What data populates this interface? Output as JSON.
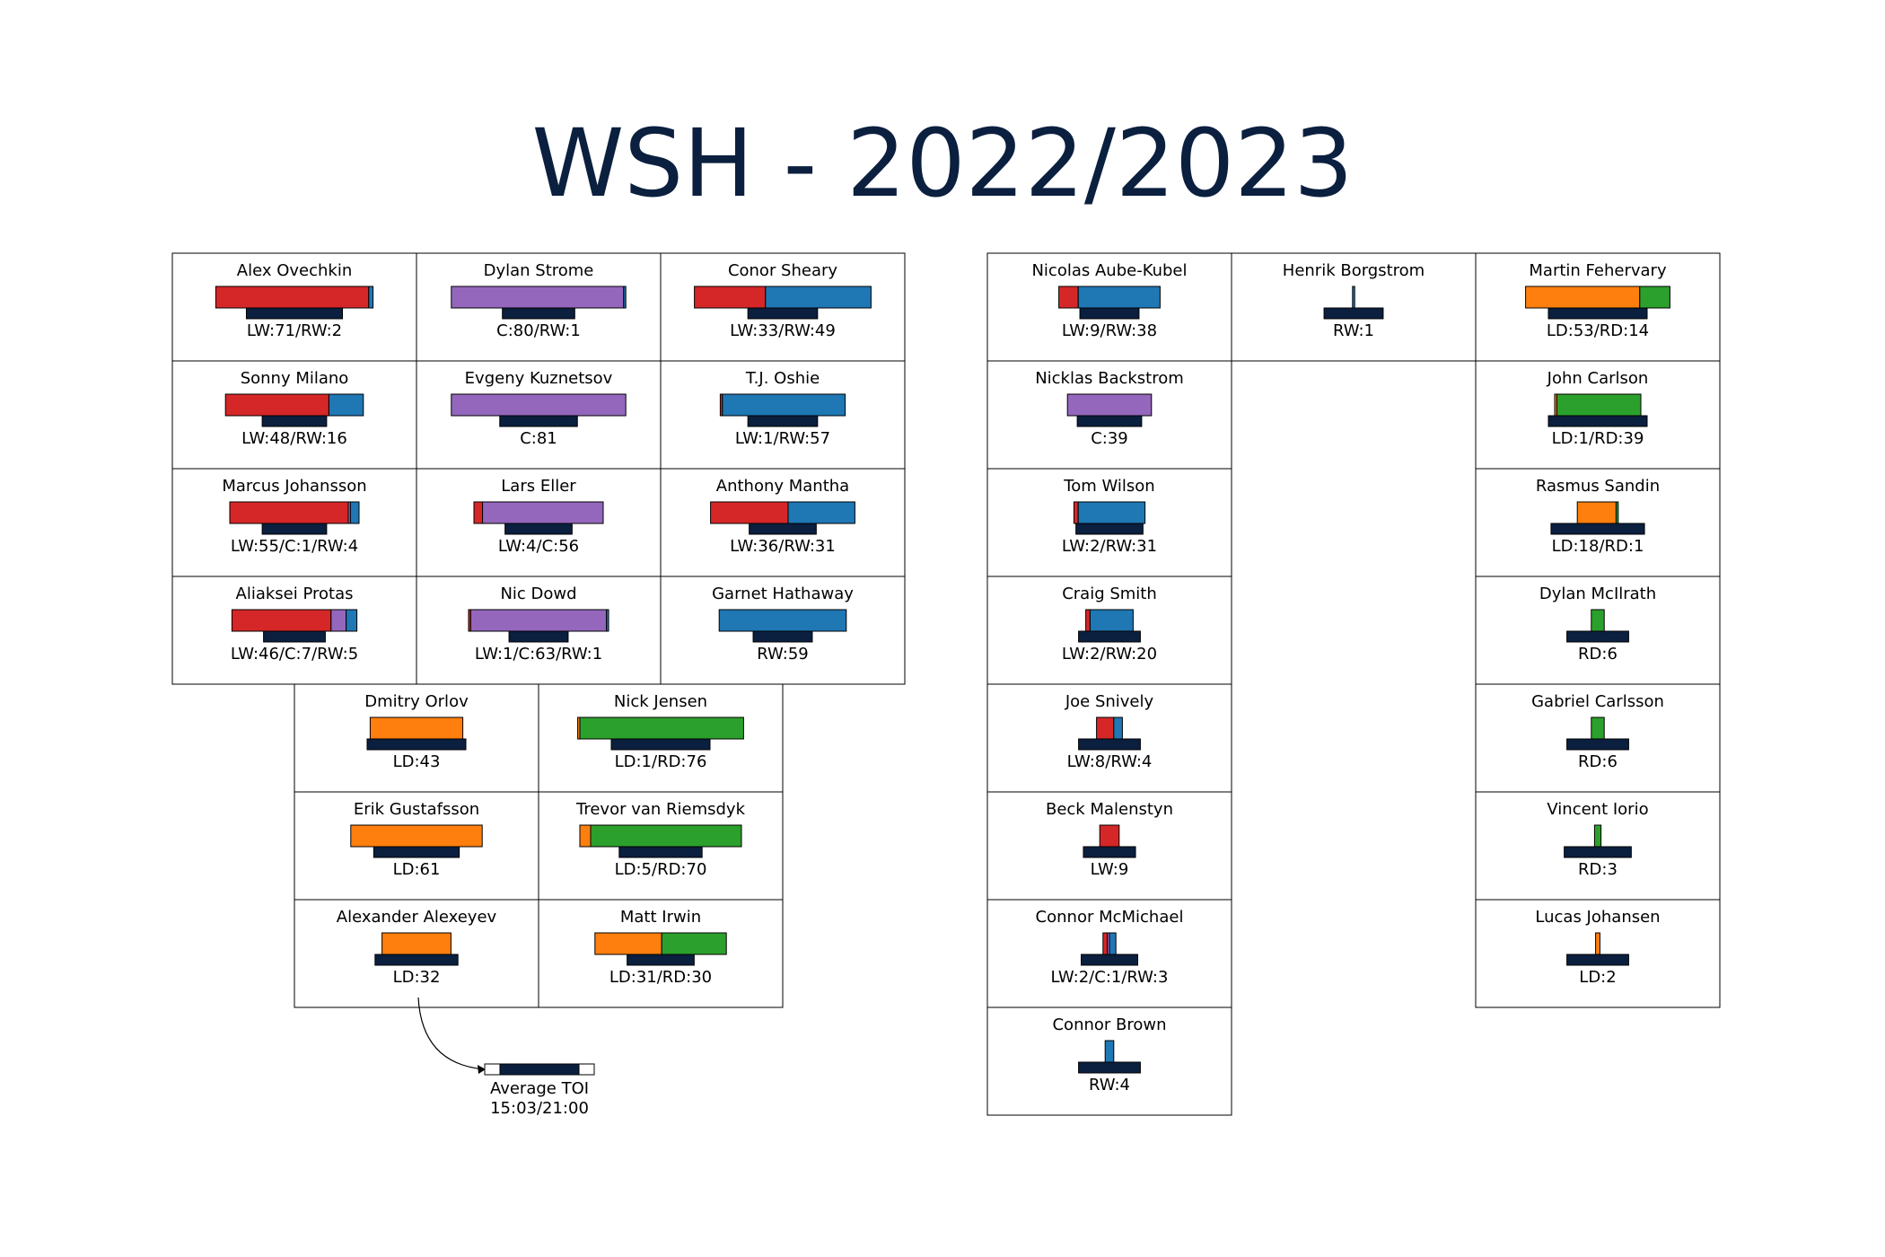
{
  "chart_data": {
    "type": "bar",
    "title": "WSH - 2022/2023",
    "colors": {
      "LW": "#d62728",
      "C": "#9467bd",
      "RW": "#1f77b4",
      "LD": "#ff7f0e",
      "RD": "#2ca02c",
      "toi": "#0b1f3f"
    },
    "toi_legend": {
      "label": "Average TOI",
      "range": "15:03/21:00",
      "min_seconds": 903,
      "max_seconds": 1260
    },
    "groups": [
      {
        "name": "forwards",
        "rows": [
          [
            {
              "player": "Alex Ovechkin",
              "label": "LW:71/RW:2",
              "positions": [
                {
                  "pos": "LW",
                  "games": 71
                },
                {
                  "pos": "RW",
                  "games": 2
                }
              ],
              "toi_seconds": 1245
            },
            {
              "player": "Dylan Strome",
              "label": "C:80/RW:1",
              "positions": [
                {
                  "pos": "C",
                  "games": 80
                },
                {
                  "pos": "RW",
                  "games": 1
                }
              ],
              "toi_seconds": 1110
            },
            {
              "player": "Conor Sheary",
              "label": "LW:33/RW:49",
              "positions": [
                {
                  "pos": "LW",
                  "games": 33
                },
                {
                  "pos": "RW",
                  "games": 49
                }
              ],
              "toi_seconds": 1095
            }
          ],
          [
            {
              "player": "Sonny Milano",
              "label": "LW:48/RW:16",
              "positions": [
                {
                  "pos": "LW",
                  "games": 48
                },
                {
                  "pos": "RW",
                  "games": 16
                }
              ],
              "toi_seconds": 1065
            },
            {
              "player": "Evgeny Kuznetsov",
              "label": "C:81",
              "positions": [
                {
                  "pos": "C",
                  "games": 81
                }
              ],
              "toi_seconds": 1140
            },
            {
              "player": "T.J. Oshie",
              "label": "LW:1/RW:57",
              "positions": [
                {
                  "pos": "LW",
                  "games": 1
                },
                {
                  "pos": "RW",
                  "games": 57
                }
              ],
              "toi_seconds": 1095
            }
          ],
          [
            {
              "player": "Marcus Johansson",
              "label": "LW:55/C:1/RW:4",
              "positions": [
                {
                  "pos": "LW",
                  "games": 55
                },
                {
                  "pos": "C",
                  "games": 1
                },
                {
                  "pos": "RW",
                  "games": 4
                }
              ],
              "toi_seconds": 1065
            },
            {
              "player": "Lars Eller",
              "label": "LW:4/C:56",
              "positions": [
                {
                  "pos": "LW",
                  "games": 4
                },
                {
                  "pos": "C",
                  "games": 56
                }
              ],
              "toi_seconds": 1080
            },
            {
              "player": "Anthony Mantha",
              "label": "LW:36/RW:31",
              "positions": [
                {
                  "pos": "LW",
                  "games": 36
                },
                {
                  "pos": "RW",
                  "games": 31
                }
              ],
              "toi_seconds": 1080
            }
          ],
          [
            {
              "player": "Aliaksei Protas",
              "label": "LW:46/C:7/RW:5",
              "positions": [
                {
                  "pos": "LW",
                  "games": 46
                },
                {
                  "pos": "C",
                  "games": 7
                },
                {
                  "pos": "RW",
                  "games": 5
                }
              ],
              "toi_seconds": 1050
            },
            {
              "player": "Nic Dowd",
              "label": "LW:1/C:63/RW:1",
              "positions": [
                {
                  "pos": "LW",
                  "games": 1
                },
                {
                  "pos": "C",
                  "games": 63
                },
                {
                  "pos": "RW",
                  "games": 1
                }
              ],
              "toi_seconds": 1035
            },
            {
              "player": "Garnet Hathaway",
              "label": "RW:59",
              "positions": [
                {
                  "pos": "RW",
                  "games": 59
                }
              ],
              "toi_seconds": 1035
            }
          ]
        ]
      },
      {
        "name": "defense",
        "rows": [
          [
            {
              "player": "Dmitry Orlov",
              "label": "LD:43",
              "positions": [
                {
                  "pos": "LD",
                  "games": 43
                }
              ],
              "toi_seconds": 1260
            },
            {
              "player": "Nick Jensen",
              "label": "LD:1/RD:76",
              "positions": [
                {
                  "pos": "LD",
                  "games": 1
                },
                {
                  "pos": "RD",
                  "games": 76
                }
              ],
              "toi_seconds": 1260
            }
          ],
          [
            {
              "player": "Erik Gustafsson",
              "label": "LD:61",
              "positions": [
                {
                  "pos": "LD",
                  "games": 61
                }
              ],
              "toi_seconds": 1185
            },
            {
              "player": "Trevor van Riemsdyk",
              "label": "LD:5/RD:70",
              "positions": [
                {
                  "pos": "LD",
                  "games": 5
                },
                {
                  "pos": "RD",
                  "games": 70
                }
              ],
              "toi_seconds": 1170
            }
          ],
          [
            {
              "player": "Alexander Alexeyev",
              "label": "LD:32",
              "positions": [
                {
                  "pos": "LD",
                  "games": 32
                }
              ],
              "toi_seconds": 1170
            },
            {
              "player": "Matt Irwin",
              "label": "LD:31/RD:30",
              "positions": [
                {
                  "pos": "LD",
                  "games": 31
                },
                {
                  "pos": "RD",
                  "games": 30
                }
              ],
              "toi_seconds": 1080
            }
          ]
        ]
      },
      {
        "name": "depth",
        "rows": [
          [
            {
              "player": "Nicolas Aube-Kubel",
              "label": "LW:9/RW:38",
              "positions": [
                {
                  "pos": "LW",
                  "games": 9
                },
                {
                  "pos": "RW",
                  "games": 38
                }
              ],
              "toi_seconds": 1035
            },
            {
              "player": "Henrik Borgstrom",
              "label": "RW:1",
              "positions": [
                {
                  "pos": "RW",
                  "games": 1
                }
              ],
              "toi_seconds": 1035
            },
            {
              "player": "Martin Fehervary",
              "label": "LD:53/RD:14",
              "positions": [
                {
                  "pos": "LD",
                  "games": 53
                },
                {
                  "pos": "RD",
                  "games": 14
                }
              ],
              "toi_seconds": 1260
            }
          ],
          [
            {
              "player": "Nicklas Backstrom",
              "label": "C:39",
              "positions": [
                {
                  "pos": "C",
                  "games": 39
                }
              ],
              "toi_seconds": 1065
            },
            null,
            {
              "player": "John Carlson",
              "label": "LD:1/RD:39",
              "positions": [
                {
                  "pos": "LD",
                  "games": 1
                },
                {
                  "pos": "RD",
                  "games": 39
                }
              ],
              "toi_seconds": 1260
            }
          ],
          [
            {
              "player": "Tom Wilson",
              "label": "LW:2/RW:31",
              "positions": [
                {
                  "pos": "LW",
                  "games": 2
                },
                {
                  "pos": "RW",
                  "games": 31
                }
              ],
              "toi_seconds": 1080
            },
            null,
            {
              "player": "Rasmus Sandin",
              "label": "LD:18/RD:1",
              "positions": [
                {
                  "pos": "LD",
                  "games": 18
                },
                {
                  "pos": "RD",
                  "games": 1
                }
              ],
              "toi_seconds": 1230
            }
          ],
          [
            {
              "player": "Craig Smith",
              "label": "LW:2/RW:20",
              "positions": [
                {
                  "pos": "LW",
                  "games": 2
                },
                {
                  "pos": "RW",
                  "games": 20
                }
              ],
              "toi_seconds": 1050
            },
            null,
            {
              "player": "Dylan McIlrath",
              "label": "RD:6",
              "positions": [
                {
                  "pos": "RD",
                  "games": 6
                }
              ],
              "toi_seconds": 1050
            }
          ],
          [
            {
              "player": "Joe Snively",
              "label": "LW:8/RW:4",
              "positions": [
                {
                  "pos": "LW",
                  "games": 8
                },
                {
                  "pos": "RW",
                  "games": 4
                }
              ],
              "toi_seconds": 1050
            },
            null,
            {
              "player": "Gabriel Carlsson",
              "label": "RD:6",
              "positions": [
                {
                  "pos": "RD",
                  "games": 6
                }
              ],
              "toi_seconds": 1050
            }
          ],
          [
            {
              "player": "Beck Malenstyn",
              "label": "LW:9",
              "positions": [
                {
                  "pos": "LW",
                  "games": 9
                }
              ],
              "toi_seconds": 995
            },
            null,
            {
              "player": "Vincent Iorio",
              "label": "RD:3",
              "positions": [
                {
                  "pos": "RD",
                  "games": 3
                }
              ],
              "toi_seconds": 1080
            }
          ],
          [
            {
              "player": "Connor McMichael",
              "label": "LW:2/C:1/RW:3",
              "positions": [
                {
                  "pos": "LW",
                  "games": 2
                },
                {
                  "pos": "C",
                  "games": 1
                },
                {
                  "pos": "RW",
                  "games": 3
                }
              ],
              "toi_seconds": 1020
            },
            null,
            {
              "player": "Lucas Johansen",
              "label": "LD:2",
              "positions": [
                {
                  "pos": "LD",
                  "games": 2
                }
              ],
              "toi_seconds": 1050
            }
          ],
          [
            {
              "player": "Connor Brown",
              "label": "RW:4",
              "positions": [
                {
                  "pos": "RW",
                  "games": 4
                }
              ],
              "toi_seconds": 1050
            },
            null,
            null
          ]
        ]
      }
    ]
  }
}
